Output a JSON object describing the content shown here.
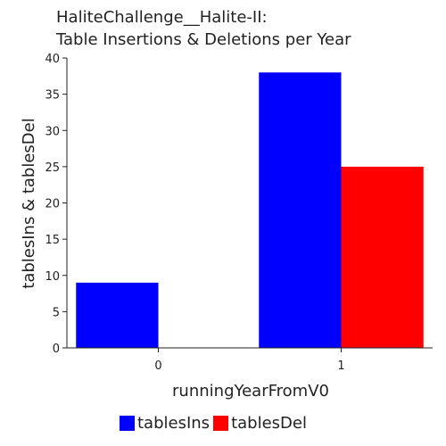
{
  "chart_data": {
    "type": "bar",
    "title_lines": [
      "HaliteChallenge__Halite-II:",
      "Table Insertions & Deletions per Year"
    ],
    "xlabel": "runningYearFromV0",
    "ylabel": "tablesIns & tablesDel",
    "categories": [
      "0",
      "1"
    ],
    "series": [
      {
        "name": "tablesIns",
        "color": "#0000ff",
        "values": [
          9,
          38
        ]
      },
      {
        "name": "tablesDel",
        "color": "#ff0000",
        "values": [
          0,
          25
        ]
      }
    ],
    "ylim": [
      0,
      40
    ],
    "yticks": [
      0,
      5,
      10,
      15,
      20,
      25,
      30,
      35,
      40
    ],
    "grid": false,
    "legend_position": "bottom"
  }
}
